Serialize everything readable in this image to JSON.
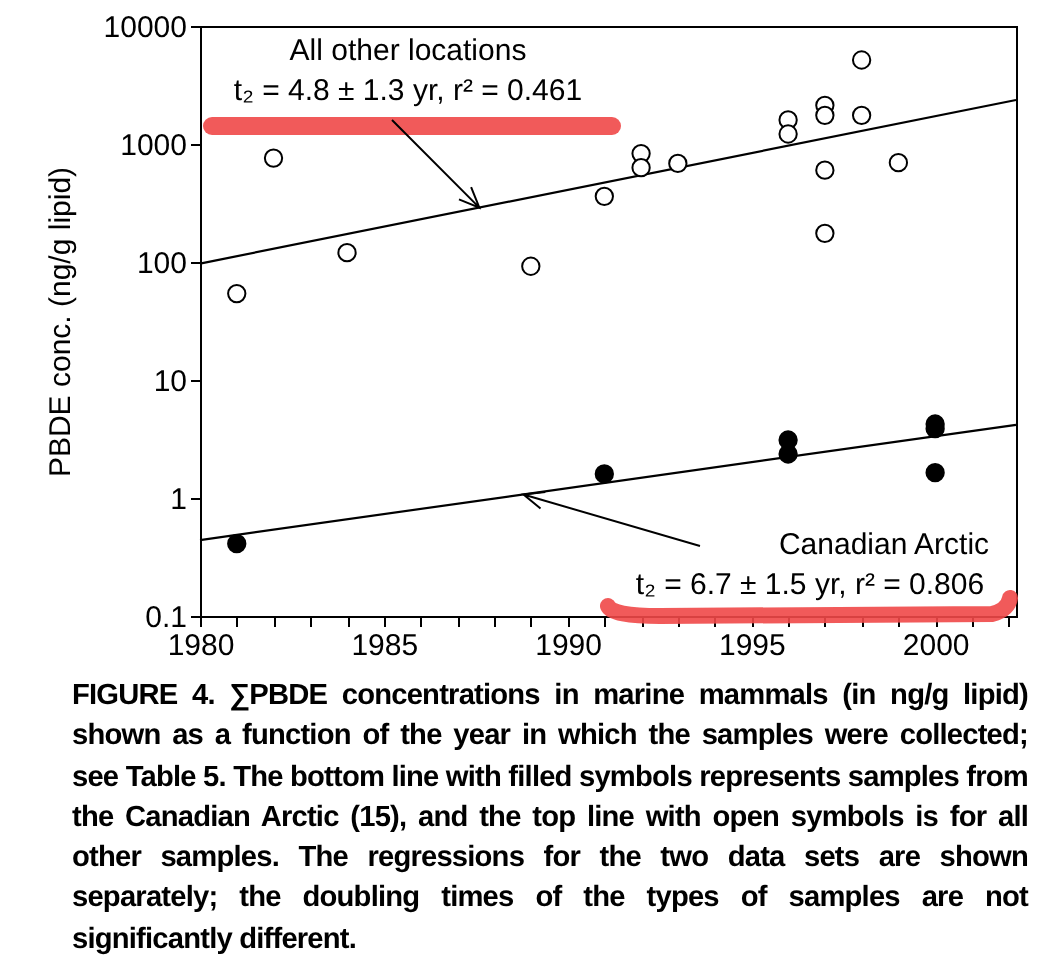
{
  "chart_data": {
    "type": "scatter",
    "ylabel": "PBDE conc. (ng/g lipid)",
    "log": "y",
    "grid": false,
    "xlim": [
      1980,
      2002.2
    ],
    "xticks": [
      1980,
      {
        "value": 1981,
        "label": null
      },
      {
        "value": 1982,
        "label": null
      },
      {
        "value": 1983,
        "label": null
      },
      {
        "value": 1984,
        "label": null
      },
      1985,
      {
        "value": 1986,
        "label": null
      },
      {
        "value": 1987,
        "label": null
      },
      {
        "value": 1988,
        "label": null
      },
      {
        "value": 1989,
        "label": null
      },
      1990,
      {
        "value": 1991,
        "label": null
      },
      {
        "value": 1992,
        "label": null
      },
      {
        "value": 1993,
        "label": null
      },
      {
        "value": 1994,
        "label": null
      },
      1995,
      {
        "value": 1996,
        "label": null
      },
      {
        "value": 1997,
        "label": null
      },
      {
        "value": 1998,
        "label": null
      },
      {
        "value": 1999,
        "label": null
      },
      2000,
      {
        "value": 2001,
        "label": null
      },
      {
        "value": 2002,
        "label": null
      }
    ],
    "ylim": [
      0.1,
      10000
    ],
    "yticks": [
      0.1,
      1,
      10,
      100,
      1000,
      10000
    ],
    "series": [
      {
        "color": "#ffffff",
        "marker": "circle",
        "x": [
          1981,
          1982,
          1984,
          1989,
          1991,
          1992,
          1992,
          1993,
          1996,
          1996,
          1997,
          1997,
          1997,
          1997,
          1998,
          1998,
          1999
        ],
        "values": [
          54,
          760,
          120,
          92,
          360,
          830,
          630,
          685,
          1600,
          1215,
          2125,
          1750,
          600,
          175,
          5150,
          1750,
          695
        ]
      },
      {
        "color": "#000000",
        "marker": "circle",
        "x": [
          1981,
          1991,
          1996,
          1996,
          2000,
          2000,
          2000
        ],
        "values": [
          0.41,
          1.6,
          3.1,
          2.36,
          4.24,
          3.87,
          1.64
        ]
      },
      {
        "type": "line",
        "color": "#000000",
        "marker": "none",
        "x": [
          1980,
          2002.2
        ],
        "values": [
          97,
          2360
        ]
      },
      {
        "type": "line",
        "color": "#000000",
        "marker": "none",
        "x": [
          1980,
          2002.2
        ],
        "values": [
          0.44,
          4.17
        ]
      }
    ],
    "annotations": [
      "All other locations",
      {
        "text": "t₂ = 4.8 ± 1.3 yr, r² = 0.461",
        "x": 1987.6,
        "y": 289
      },
      "Canadian Arctic",
      {
        "text": "t₂ = 6.7 ± 1.5 yr, r² = 0.806",
        "x": 1988.8,
        "y": 1.07
      },
      "FIGURE 4.  ∑PBDE concentrations in marine mammals (in ng/g lipid) shown as a function of the year in which the samples were collected; see Table 5. The bottom line with filled symbols represents samples from the Canadian Arctic (15), and the top line with open symbols is for all other samples. The regressions for the two data sets are shown separately; the doubling times of the types of samples are not significantly different."
    ]
  }
}
